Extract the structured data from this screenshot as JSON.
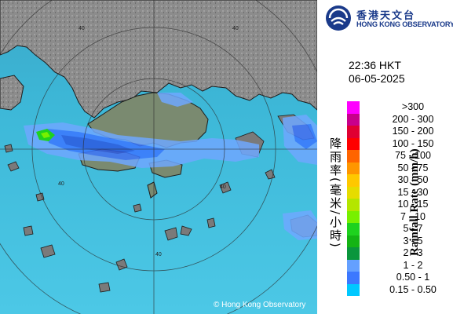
{
  "organization": {
    "name_zh": "香港天文台",
    "name_en": "HONG KONG OBSERVATORY",
    "logo_icon": "hko-logo-icon"
  },
  "timestamp": {
    "time": "22:36 HKT",
    "date": "06-05-2025"
  },
  "legend": {
    "title_en": "Rainfall Rate (mm/h)",
    "title_zh": "降雨率(毫米/小時)",
    "items": [
      {
        "label": ">300",
        "color": "#ff00ff"
      },
      {
        "label": "200 - 300",
        "color": "#c8008c"
      },
      {
        "label": "150 - 200",
        "color": "#e00032"
      },
      {
        "label": "100 - 150",
        "color": "#ff0000"
      },
      {
        "label": "75 - 100",
        "color": "#ff6400"
      },
      {
        "label": "50 - 75",
        "color": "#ff9600"
      },
      {
        "label": "30 - 50",
        "color": "#ffc800"
      },
      {
        "label": "15 - 30",
        "color": "#e6dc00"
      },
      {
        "label": "10 - 15",
        "color": "#b4e600"
      },
      {
        "label": "7 - 10",
        "color": "#78f000"
      },
      {
        "label": "5 - 7",
        "color": "#1ed21e"
      },
      {
        "label": "3 - 5",
        "color": "#14b414"
      },
      {
        "label": "2 - 3",
        "color": "#0a963c"
      },
      {
        "label": "1 - 2",
        "color": "#64a0ff"
      },
      {
        "label": "0.50 - 1",
        "color": "#3c78ff"
      },
      {
        "label": "0.15 - 0.50",
        "color": "#00c8ff"
      }
    ]
  },
  "map": {
    "ring_label": "40",
    "copyright": "© Hong Kong Observatory",
    "colors": {
      "sea": "#3db8d8",
      "land": "#8a8a8a",
      "radar_light": "#3c78ff",
      "radar_med": "#2d5ae0",
      "green_cell": "#1ed21e"
    }
  }
}
